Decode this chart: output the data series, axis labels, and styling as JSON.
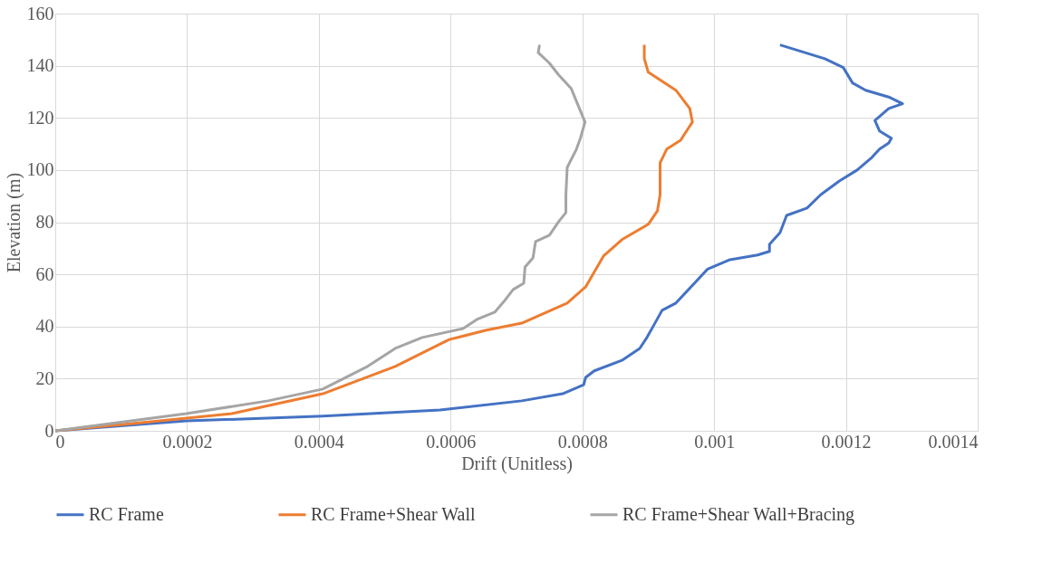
{
  "chart_data": {
    "type": "line",
    "xlabel": "Drift (Unitless)",
    "ylabel": "Elevation (m)",
    "xlim": [
      0,
      0.0014
    ],
    "xticks": [
      0,
      0.0002,
      0.0004,
      0.0006,
      0.0008,
      0.001,
      0.0012,
      0.0014
    ],
    "ylim": [
      0,
      160
    ],
    "yticks": [
      0,
      20,
      40,
      60,
      80,
      100,
      120,
      140,
      160
    ],
    "grid": true,
    "legend": "bottom",
    "marker": "none",
    "line_style": "solid",
    "series": [
      {
        "name": "RC Frame",
        "color": "#4472c4",
        "x": [
          0,
          0.000199,
          0.000406,
          0.000584,
          0.000708,
          0.00077,
          0.000802,
          0.000805,
          0.000818,
          0.00086,
          0.000887,
          0.000898,
          0.000908,
          0.000921,
          0.000942,
          0.00097,
          0.00099,
          0.001024,
          0.001066,
          0.001084,
          0.001084,
          0.0011,
          0.00111,
          0.001141,
          0.001162,
          0.00119,
          0.001217,
          0.001238,
          0.001251,
          0.001265,
          0.001269,
          0.001251,
          0.001244,
          0.001265,
          0.001286,
          0.001265,
          0.00123,
          0.00121,
          0.001196,
          0.001168,
          0.0011
        ],
        "values": [
          0,
          3.8,
          5.6,
          8,
          11.5,
          14.2,
          17.7,
          20.5,
          23,
          27,
          31.6,
          35.8,
          40.3,
          46.2,
          49,
          56.6,
          62,
          65.6,
          67.4,
          68.8,
          71.5,
          76,
          82.6,
          85.4,
          90.6,
          95.8,
          100,
          104.5,
          108,
          110.4,
          112.2,
          115,
          119,
          123.6,
          125.4,
          128,
          130.6,
          133.4,
          139.3,
          142.7,
          148
        ]
      },
      {
        "name": "RC Frame+Shear Wall",
        "color": "#ed7d31",
        "x": [
          0,
          0.000131,
          0.000268,
          0.000406,
          0.000516,
          0.000571,
          0.000598,
          0.000653,
          0.000708,
          0.000777,
          0.000805,
          0.000832,
          0.00086,
          0.0009,
          0.000914,
          0.000918,
          0.000918,
          0.000928,
          0.000949,
          0.000967,
          0.000963,
          0.000942,
          0.0009,
          0.000894,
          0.000894
        ],
        "values": [
          0,
          3.1,
          6.6,
          14.2,
          24.7,
          31.6,
          35,
          38.5,
          41.3,
          49,
          55.2,
          67,
          73.3,
          79.2,
          84.4,
          90.6,
          102.8,
          108,
          111.4,
          118.4,
          123.6,
          130.6,
          137.5,
          142.7,
          148
        ]
      },
      {
        "name": "RC Frame+Shear Wall+Bracing",
        "color": "#a5a5a5",
        "x": [
          0,
          0.000199,
          0.000323,
          0.000406,
          0.000474,
          0.000516,
          0.000557,
          0.000619,
          0.00064,
          0.000667,
          0.000681,
          0.000695,
          0.000711,
          0.000713,
          0.000725,
          0.000729,
          0.00075,
          0.000764,
          0.000775,
          0.000775,
          0.000777,
          0.000791,
          0.000797,
          0.000804,
          0.00079,
          0.000783,
          0.000764,
          0.00075,
          0.000733,
          0.000735
        ],
        "values": [
          0,
          6.6,
          11.5,
          16,
          24.7,
          31.6,
          35.8,
          39.2,
          42.7,
          45.5,
          49.6,
          54.2,
          56.6,
          62.8,
          66.3,
          72.6,
          75,
          80.2,
          83.7,
          90.6,
          101,
          108,
          112.2,
          118.4,
          127,
          131.3,
          136.5,
          141,
          145,
          148
        ]
      }
    ]
  }
}
